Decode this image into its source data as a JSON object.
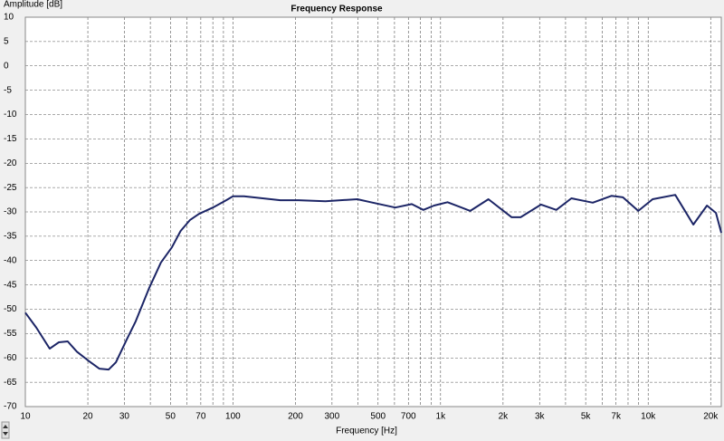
{
  "chart_data": {
    "type": "line",
    "title": "Frequency Response",
    "y_label": "Amplitude [dB]",
    "x_label": "Frequency [Hz]",
    "log_x": true,
    "grid": true,
    "color": "#1c2566",
    "xlim": [
      10,
      22500
    ],
    "ylim": [
      -70,
      10
    ],
    "xticks": [
      10,
      20,
      30,
      50,
      70,
      100,
      200,
      300,
      500,
      700,
      {
        "value": 1000,
        "label": "1k"
      },
      {
        "value": 2000,
        "label": "2k"
      },
      {
        "value": 3000,
        "label": "3k"
      },
      {
        "value": 5000,
        "label": "5k"
      },
      {
        "value": 7000,
        "label": "7k"
      },
      {
        "value": 10000,
        "label": "10k"
      },
      {
        "value": 20000,
        "label": "20k"
      }
    ],
    "xgrid_minor": [
      40,
      60,
      80,
      90,
      400,
      600,
      800,
      900,
      4000,
      6000,
      8000,
      9000
    ],
    "yticks": [
      10,
      5,
      0,
      -5,
      -10,
      -15,
      -20,
      -25,
      -30,
      -35,
      -40,
      -45,
      -50,
      -55,
      -60,
      -65,
      -70
    ],
    "x": [
      10,
      11.3,
      13.1,
      14.5,
      16,
      17.7,
      20,
      22.7,
      25.2,
      27.3,
      30.8,
      34,
      39.5,
      45,
      50.8,
      56,
      62,
      68.6,
      80,
      91,
      100,
      113,
      139,
      169,
      207,
      279,
      397,
      461,
      605,
      727,
      826,
      930,
      1080,
      1390,
      1700,
      2200,
      2430,
      3050,
      3610,
      4270,
      5410,
      6650,
      7560,
      8960,
      10500,
      13500,
      16500,
      19200,
      21200,
      22500
    ],
    "values": [
      -50.7,
      -53.8,
      -58.1,
      -56.8,
      -56.6,
      -58.7,
      -60.5,
      -62.2,
      -62.4,
      -60.9,
      -56.2,
      -52.5,
      -45.6,
      -40.4,
      -37.3,
      -33.9,
      -31.7,
      -30.4,
      -29.1,
      -27.8,
      -26.8,
      -26.8,
      -27.2,
      -27.6,
      -27.6,
      -27.8,
      -27.4,
      -28.0,
      -29.1,
      -28.4,
      -29.6,
      -28.7,
      -28.0,
      -29.8,
      -27.4,
      -31.1,
      -31.1,
      -28.5,
      -29.6,
      -27.2,
      -28.1,
      -26.7,
      -27.0,
      -29.8,
      -27.4,
      -26.5,
      -32.6,
      -28.7,
      -30.2,
      -34.3
    ]
  }
}
